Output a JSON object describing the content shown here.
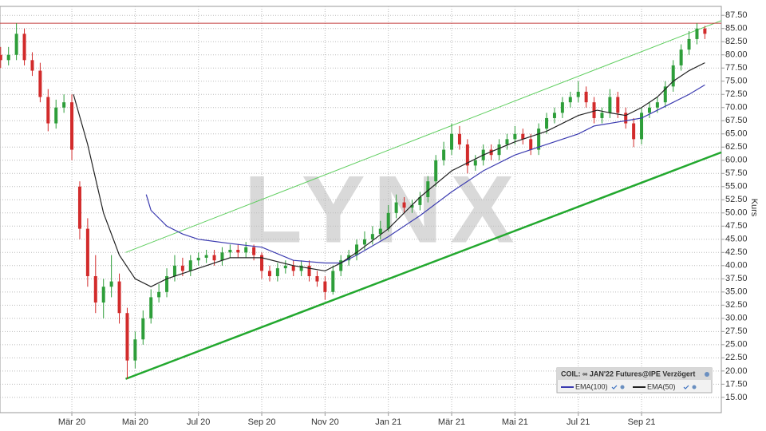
{
  "chart_data": {
    "type": "candlestick",
    "watermark": "LYNX",
    "ylabel": "Kurs",
    "legend_title": "COIL: ∞ JAN'22 Futures@IPE Verzögert",
    "grid": true,
    "up_color": "#2e9e3a",
    "down_color": "#d22b2b",
    "xlim": [
      -0.27,
      22.52
    ],
    "ylim": [
      12.1,
      89.2
    ],
    "xticks": [
      {
        "value": 2,
        "label": "Mär 20"
      },
      {
        "value": 4,
        "label": "Mai 20"
      },
      {
        "value": 6,
        "label": "Jul 20"
      },
      {
        "value": 8,
        "label": "Sep 20"
      },
      {
        "value": 10,
        "label": "Nov 20"
      },
      {
        "value": 12,
        "label": "Jan 21"
      },
      {
        "value": 14,
        "label": "Mär 21"
      },
      {
        "value": 16,
        "label": "Mai 21"
      },
      {
        "value": 18,
        "label": "Jul 21"
      },
      {
        "value": 20,
        "label": "Sep 21"
      }
    ],
    "yticks": [
      {
        "value": 15,
        "label": "15.00"
      },
      {
        "value": 17.5,
        "label": "17.50"
      },
      {
        "value": 20,
        "label": "20.00"
      },
      {
        "value": 22.5,
        "label": "22.50"
      },
      {
        "value": 25,
        "label": "25.00"
      },
      {
        "value": 27.5,
        "label": "27.50"
      },
      {
        "value": 30,
        "label": "30.00"
      },
      {
        "value": 32.5,
        "label": "32.50"
      },
      {
        "value": 35,
        "label": "35.00"
      },
      {
        "value": 37.5,
        "label": "37.50"
      },
      {
        "value": 40,
        "label": "40.00"
      },
      {
        "value": 42.5,
        "label": "42.50"
      },
      {
        "value": 45,
        "label": "45.00"
      },
      {
        "value": 47.5,
        "label": "47.50"
      },
      {
        "value": 50,
        "label": "50.00"
      },
      {
        "value": 52.5,
        "label": "52.50"
      },
      {
        "value": 55,
        "label": "55.00"
      },
      {
        "value": 57.5,
        "label": "57.50"
      },
      {
        "value": 60,
        "label": "60.00"
      },
      {
        "value": 62.5,
        "label": "62.50"
      },
      {
        "value": 65,
        "label": "65.00"
      },
      {
        "value": 67.5,
        "label": "67.50"
      },
      {
        "value": 70,
        "label": "70.00"
      },
      {
        "value": 72.5,
        "label": "72.50"
      },
      {
        "value": 75,
        "label": "75.00"
      },
      {
        "value": 77.5,
        "label": "77.50"
      },
      {
        "value": 80,
        "label": "80.00"
      },
      {
        "value": 82.5,
        "label": "82.50"
      },
      {
        "value": 85,
        "label": "85.00"
      },
      {
        "value": 87.5,
        "label": "87.50"
      }
    ],
    "x": [
      -0.25,
      0,
      0.25,
      0.5,
      0.75,
      1,
      1.25,
      1.5,
      1.75,
      2,
      2.25,
      2.5,
      2.75,
      3,
      3.25,
      3.5,
      3.75,
      4,
      4.25,
      4.5,
      4.75,
      5,
      5.25,
      5.5,
      5.75,
      6,
      6.25,
      6.5,
      6.75,
      7,
      7.25,
      7.5,
      7.75,
      8,
      8.25,
      8.5,
      8.75,
      9,
      9.25,
      9.5,
      9.75,
      10,
      10.25,
      10.5,
      10.75,
      11,
      11.25,
      11.5,
      11.75,
      12,
      12.25,
      12.5,
      12.75,
      13,
      13.25,
      13.5,
      13.75,
      14,
      14.25,
      14.5,
      14.75,
      15,
      15.25,
      15.5,
      15.75,
      16,
      16.25,
      16.5,
      16.75,
      17,
      17.25,
      17.5,
      17.75,
      18,
      18.25,
      18.5,
      18.75,
      19,
      19.25,
      19.5,
      19.75,
      20,
      20.25,
      20.5,
      20.75,
      21,
      21.25,
      21.5,
      21.75,
      22
    ],
    "open": [
      80,
      79,
      80,
      84,
      79,
      77,
      72,
      67,
      70,
      71,
      55,
      47,
      38,
      33,
      36,
      37,
      31,
      22,
      26,
      30,
      34,
      35,
      38,
      40,
      39,
      41,
      41.5,
      42,
      41,
      42.5,
      43,
      42.5,
      43.5,
      42,
      39,
      38,
      39.5,
      40,
      39,
      40,
      38,
      37,
      35,
      39,
      41,
      42,
      44,
      45,
      46,
      47,
      50,
      52,
      51,
      51.5,
      53,
      56,
      60,
      62,
      65,
      63,
      59,
      60,
      62,
      61,
      63,
      64,
      65,
      64,
      62,
      66,
      68,
      69,
      71,
      72,
      73,
      71,
      68,
      69,
      72,
      69,
      67,
      64,
      69,
      70,
      71,
      74,
      78,
      81,
      83,
      85
    ],
    "high": [
      81.5,
      81.5,
      86,
      85,
      80.5,
      78.5,
      73.5,
      71.5,
      72.5,
      72.5,
      56,
      49,
      42,
      37.5,
      42,
      38.5,
      32,
      27.5,
      31.5,
      35.5,
      36.5,
      39.5,
      42,
      41.5,
      42,
      42.5,
      43,
      43,
      43.5,
      44,
      44,
      44.5,
      44,
      42.5,
      40,
      40.5,
      41,
      41,
      41,
      41,
      39,
      38,
      40,
      42,
      43,
      45,
      46.5,
      47.5,
      48.5,
      51.5,
      53.5,
      53,
      52.5,
      54,
      57,
      61,
      63.5,
      67,
      66.5,
      64,
      61,
      63,
      63,
      64,
      65,
      66.5,
      66,
      65,
      67,
      69,
      70,
      72,
      73,
      75,
      74,
      72,
      70,
      73.5,
      73,
      70,
      68,
      70,
      71,
      72,
      75,
      79,
      82,
      84.5,
      86,
      85.5
    ],
    "low": [
      77.5,
      78,
      79,
      78,
      76,
      71,
      65.5,
      66,
      69,
      60,
      45,
      36,
      31,
      30,
      34,
      29,
      18.5,
      20.5,
      25,
      29,
      33,
      34,
      37,
      38,
      38,
      40,
      40.5,
      40,
      40,
      41.5,
      41.5,
      41.5,
      41,
      37.5,
      37,
      37,
      38.5,
      38,
      38,
      37,
      36,
      33.5,
      34.5,
      38,
      40,
      41,
      43,
      44,
      45,
      46.5,
      49,
      50,
      50,
      50.5,
      52,
      55,
      59,
      61,
      62,
      57.5,
      58,
      59,
      60,
      60,
      62,
      63,
      63,
      61,
      61,
      65,
      67,
      68,
      70,
      71,
      70,
      67,
      67,
      68,
      68,
      66,
      62.5,
      63,
      68,
      69,
      70,
      73,
      77,
      80,
      82,
      83
    ],
    "close": [
      79,
      80,
      84,
      79,
      77,
      72,
      67,
      70,
      71,
      62,
      47,
      38,
      33,
      36,
      37,
      31,
      22,
      26,
      30,
      34,
      35,
      38,
      40,
      39,
      41,
      41.5,
      42,
      41,
      42.5,
      43,
      42.5,
      43.5,
      42,
      39,
      38,
      39.5,
      40,
      39,
      40,
      38,
      37,
      35,
      39,
      41,
      42,
      44,
      45,
      46,
      47,
      50,
      52,
      51,
      51.5,
      53,
      56,
      60,
      62,
      65,
      63,
      59,
      60,
      62,
      61,
      63,
      64,
      65,
      64,
      62,
      66,
      68,
      69,
      71,
      72,
      73,
      71,
      68,
      69,
      72,
      69,
      67,
      64,
      69,
      70,
      71,
      74,
      78,
      81,
      83,
      85,
      84
    ],
    "series": [
      {
        "name": "EMA(100)",
        "color": "#3b3bb0",
        "x": [
          4.35,
          4.5,
          5,
          5.5,
          6,
          7,
          8,
          9,
          10,
          10.5,
          11,
          12,
          13,
          14,
          15,
          16,
          17,
          18,
          18.5,
          19,
          19.5,
          20,
          20.5,
          21,
          21.5,
          22
        ],
        "values": [
          53.5,
          50.5,
          47.5,
          46,
          45,
          44.2,
          43.5,
          41,
          40.5,
          40.5,
          42,
          45.5,
          49.5,
          54,
          58,
          61,
          63,
          65,
          66.5,
          67,
          67.5,
          68,
          69.5,
          71,
          72.5,
          74.3
        ]
      },
      {
        "name": "EMA(50)",
        "color": "#222222",
        "x": [
          2.05,
          2.5,
          3,
          3.5,
          4,
          4.5,
          5,
          6,
          7,
          8,
          9,
          10,
          10.5,
          11,
          12,
          13,
          14,
          15,
          16,
          17,
          18,
          18.6,
          19,
          19.5,
          20,
          20.5,
          21,
          21.5,
          22
        ],
        "values": [
          72.5,
          63,
          50,
          42,
          37.5,
          36,
          37.5,
          39.5,
          41.5,
          41.5,
          40,
          39,
          40.5,
          42.5,
          47,
          53,
          58,
          61,
          63.5,
          65.5,
          68.5,
          69.5,
          69,
          68.5,
          70,
          72,
          75,
          77,
          78.5
        ]
      }
    ],
    "lines": [
      {
        "color": "#22a82e",
        "x": [
          3.7,
          22.52
        ],
        "values": [
          18.5,
          61.5
        ]
      },
      {
        "color": "#5fce5f",
        "x": [
          3.7,
          22.52
        ],
        "values": [
          42.5,
          86.5
        ]
      },
      {
        "color": "#c23b3b",
        "x": [
          -0.27,
          22.52
        ],
        "values": [
          86,
          86
        ]
      }
    ]
  }
}
